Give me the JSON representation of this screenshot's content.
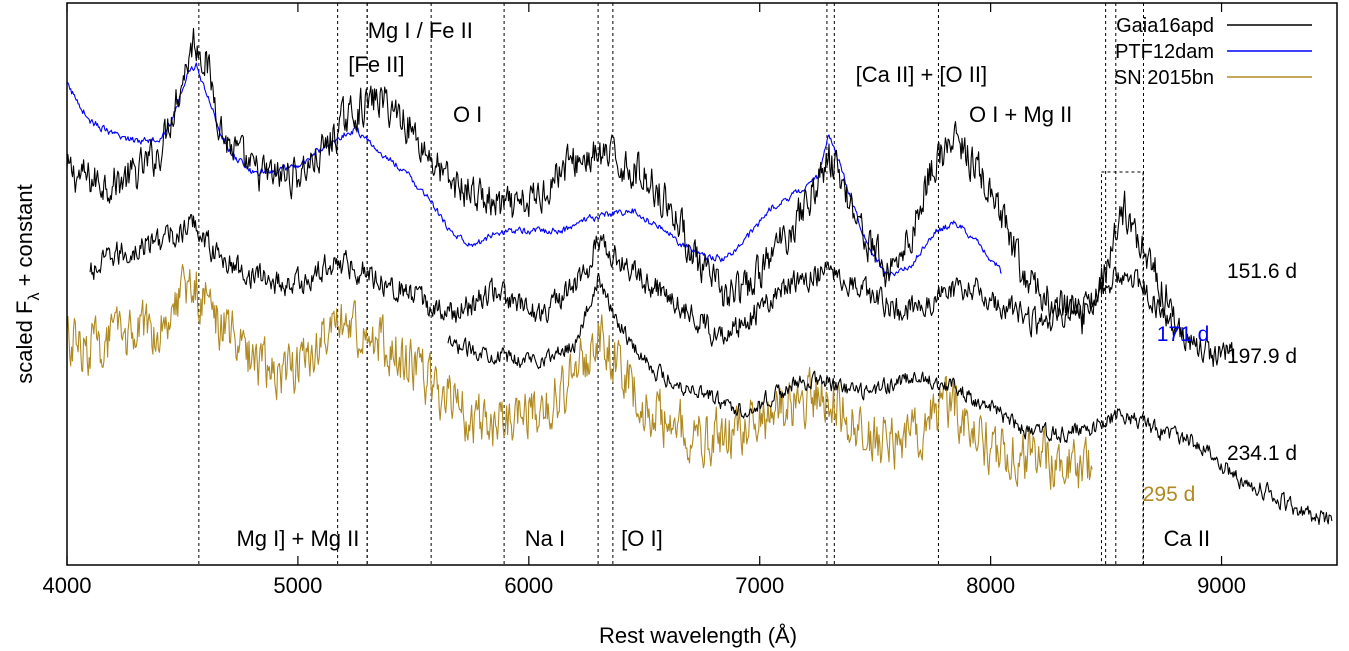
{
  "chart_data": {
    "type": "line",
    "title": "",
    "xlabel": "Rest wavelength (Å)",
    "ylabel": "scaled F",
    "ylabel_subscript": "λ",
    "ylabel_suffix": " + constant",
    "xlim": [
      4000,
      9500
    ],
    "ylim": [
      0,
      10
    ],
    "xticks": [
      "4000",
      "5000",
      "6000",
      "7000",
      "8000",
      "9000"
    ],
    "yticks_shown": false,
    "legend_position": "top-right",
    "colors": {
      "Gaia16apd": "#000000",
      "PTF12dam": "#0000ff",
      "SN 2015bn": "#b08a20"
    },
    "series": [
      {
        "name": "Gaia16apd",
        "epoch": "151.6 d",
        "color": "#000000",
        "points": [
          [
            4000,
            7.0
          ],
          [
            4100,
            6.85
          ],
          [
            4200,
            6.8
          ],
          [
            4300,
            6.95
          ],
          [
            4400,
            7.35
          ],
          [
            4480,
            8.4
          ],
          [
            4550,
            9.35
          ],
          [
            4600,
            9.0
          ],
          [
            4680,
            7.6
          ],
          [
            4800,
            7.0
          ],
          [
            4900,
            6.9
          ],
          [
            5000,
            6.95
          ],
          [
            5100,
            7.3
          ],
          [
            5200,
            7.9
          ],
          [
            5250,
            8.1
          ],
          [
            5350,
            8.3
          ],
          [
            5450,
            8.0
          ],
          [
            5550,
            7.4
          ],
          [
            5650,
            6.8
          ],
          [
            5750,
            6.65
          ],
          [
            5850,
            6.4
          ],
          [
            5950,
            6.3
          ],
          [
            6050,
            6.6
          ],
          [
            6150,
            7.1
          ],
          [
            6250,
            7.25
          ],
          [
            6350,
            7.25
          ],
          [
            6450,
            7.05
          ],
          [
            6550,
            6.75
          ],
          [
            6650,
            6.1
          ],
          [
            6750,
            5.2
          ],
          [
            6850,
            4.8
          ],
          [
            6950,
            4.9
          ],
          [
            7050,
            5.5
          ],
          [
            7150,
            6.1
          ],
          [
            7250,
            6.8
          ],
          [
            7300,
            7.25
          ],
          [
            7350,
            6.9
          ],
          [
            7450,
            5.9
          ],
          [
            7550,
            5.2
          ],
          [
            7650,
            5.8
          ],
          [
            7750,
            7.15
          ],
          [
            7850,
            7.55
          ],
          [
            7950,
            7.0
          ],
          [
            8050,
            6.1
          ],
          [
            8150,
            5.05
          ],
          [
            8300,
            4.55
          ],
          [
            8400,
            4.4
          ],
          [
            8500,
            5.3
          ],
          [
            8580,
            6.35
          ],
          [
            8650,
            5.7
          ],
          [
            8750,
            4.9
          ],
          [
            8800,
            4.45
          ]
        ]
      },
      {
        "name": "",
        "epoch": "197.9 d",
        "color": "#000000",
        "points": [
          [
            4100,
            5.15
          ],
          [
            4200,
            5.5
          ],
          [
            4300,
            5.6
          ],
          [
            4400,
            5.8
          ],
          [
            4500,
            5.9
          ],
          [
            4550,
            6.1
          ],
          [
            4650,
            5.5
          ],
          [
            4750,
            5.25
          ],
          [
            4850,
            5.1
          ],
          [
            4950,
            5.0
          ],
          [
            5050,
            5.05
          ],
          [
            5150,
            5.4
          ],
          [
            5250,
            5.3
          ],
          [
            5350,
            5.1
          ],
          [
            5450,
            4.9
          ],
          [
            5550,
            4.65
          ],
          [
            5650,
            4.45
          ],
          [
            5750,
            4.6
          ],
          [
            5850,
            4.9
          ],
          [
            5950,
            4.6
          ],
          [
            6050,
            4.5
          ],
          [
            6150,
            4.75
          ],
          [
            6250,
            5.2
          ],
          [
            6300,
            5.85
          ],
          [
            6400,
            5.4
          ],
          [
            6500,
            5.05
          ],
          [
            6600,
            4.85
          ],
          [
            6700,
            4.45
          ],
          [
            6800,
            4.15
          ],
          [
            6900,
            4.25
          ],
          [
            7000,
            4.55
          ],
          [
            7100,
            4.9
          ],
          [
            7200,
            5.1
          ],
          [
            7300,
            5.3
          ],
          [
            7400,
            5.05
          ],
          [
            7500,
            4.75
          ],
          [
            7600,
            4.55
          ],
          [
            7700,
            4.6
          ],
          [
            7800,
            4.85
          ],
          [
            7900,
            4.95
          ],
          [
            8000,
            4.75
          ],
          [
            8100,
            4.5
          ],
          [
            8200,
            4.3
          ],
          [
            8300,
            4.35
          ],
          [
            8450,
            4.75
          ],
          [
            8550,
            5.2
          ],
          [
            8650,
            5.0
          ],
          [
            8750,
            4.4
          ],
          [
            8850,
            4.0
          ],
          [
            8950,
            3.7
          ],
          [
            9050,
            3.85
          ]
        ]
      },
      {
        "name": "",
        "epoch": "234.1 d",
        "color": "#000000",
        "points": [
          [
            5650,
            3.9
          ],
          [
            5800,
            3.8
          ],
          [
            5950,
            3.65
          ],
          [
            6100,
            3.7
          ],
          [
            6200,
            3.95
          ],
          [
            6250,
            4.5
          ],
          [
            6300,
            5.1
          ],
          [
            6350,
            4.6
          ],
          [
            6450,
            3.9
          ],
          [
            6550,
            3.45
          ],
          [
            6650,
            3.2
          ],
          [
            6750,
            3.1
          ],
          [
            6850,
            2.85
          ],
          [
            6950,
            2.75
          ],
          [
            7050,
            3.0
          ],
          [
            7150,
            3.2
          ],
          [
            7250,
            3.3
          ],
          [
            7350,
            3.15
          ],
          [
            7450,
            3.05
          ],
          [
            7550,
            3.2
          ],
          [
            7650,
            3.3
          ],
          [
            7750,
            3.3
          ],
          [
            7850,
            3.15
          ],
          [
            7950,
            2.9
          ],
          [
            8050,
            2.65
          ],
          [
            8150,
            2.4
          ],
          [
            8300,
            2.3
          ],
          [
            8450,
            2.45
          ],
          [
            8550,
            2.7
          ],
          [
            8650,
            2.55
          ],
          [
            8750,
            2.35
          ],
          [
            8900,
            2.15
          ],
          [
            9000,
            1.8
          ],
          [
            9100,
            1.45
          ],
          [
            9200,
            1.3
          ],
          [
            9300,
            1.05
          ],
          [
            9400,
            0.85
          ],
          [
            9480,
            0.8
          ]
        ]
      },
      {
        "name": "PTF12dam",
        "epoch": "171 d",
        "color": "#0000ff",
        "points": [
          [
            4000,
            8.55
          ],
          [
            4100,
            7.9
          ],
          [
            4200,
            7.65
          ],
          [
            4300,
            7.55
          ],
          [
            4400,
            7.6
          ],
          [
            4450,
            7.85
          ],
          [
            4520,
            8.7
          ],
          [
            4560,
            8.9
          ],
          [
            4620,
            8.2
          ],
          [
            4700,
            7.35
          ],
          [
            4800,
            7.0
          ],
          [
            4900,
            7.0
          ],
          [
            5000,
            7.1
          ],
          [
            5100,
            7.4
          ],
          [
            5200,
            7.65
          ],
          [
            5250,
            7.75
          ],
          [
            5350,
            7.35
          ],
          [
            5450,
            7.05
          ],
          [
            5550,
            6.6
          ],
          [
            5650,
            6.0
          ],
          [
            5750,
            5.65
          ],
          [
            5850,
            5.9
          ],
          [
            5950,
            5.95
          ],
          [
            6050,
            5.95
          ],
          [
            6150,
            5.95
          ],
          [
            6250,
            6.15
          ],
          [
            6350,
            6.25
          ],
          [
            6450,
            6.3
          ],
          [
            6550,
            6.05
          ],
          [
            6650,
            5.75
          ],
          [
            6750,
            5.5
          ],
          [
            6850,
            5.45
          ],
          [
            6950,
            5.85
          ],
          [
            7050,
            6.35
          ],
          [
            7150,
            6.6
          ],
          [
            7250,
            6.9
          ],
          [
            7300,
            7.65
          ],
          [
            7350,
            7.1
          ],
          [
            7450,
            5.85
          ],
          [
            7550,
            5.15
          ],
          [
            7650,
            5.3
          ],
          [
            7750,
            5.9
          ],
          [
            7850,
            6.1
          ],
          [
            7950,
            5.7
          ],
          [
            8050,
            5.2
          ]
        ]
      },
      {
        "name": "SN 2015bn",
        "epoch": "295 d",
        "color": "#b08a20",
        "points": [
          [
            4000,
            4.0
          ],
          [
            4100,
            3.85
          ],
          [
            4200,
            4.0
          ],
          [
            4300,
            4.1
          ],
          [
            4400,
            4.3
          ],
          [
            4480,
            4.8
          ],
          [
            4550,
            5.0
          ],
          [
            4650,
            4.4
          ],
          [
            4750,
            3.85
          ],
          [
            4850,
            3.55
          ],
          [
            4950,
            3.45
          ],
          [
            5050,
            3.7
          ],
          [
            5150,
            4.15
          ],
          [
            5250,
            4.25
          ],
          [
            5350,
            4.05
          ],
          [
            5450,
            3.7
          ],
          [
            5550,
            3.3
          ],
          [
            5650,
            2.95
          ],
          [
            5750,
            2.6
          ],
          [
            5850,
            2.55
          ],
          [
            5950,
            2.6
          ],
          [
            6050,
            2.8
          ],
          [
            6150,
            3.1
          ],
          [
            6250,
            3.7
          ],
          [
            6300,
            4.05
          ],
          [
            6380,
            3.6
          ],
          [
            6500,
            2.85
          ],
          [
            6600,
            2.5
          ],
          [
            6700,
            2.35
          ],
          [
            6800,
            2.25
          ],
          [
            6900,
            2.3
          ],
          [
            7000,
            2.55
          ],
          [
            7100,
            2.8
          ],
          [
            7200,
            3.0
          ],
          [
            7300,
            2.95
          ],
          [
            7400,
            2.55
          ],
          [
            7500,
            2.25
          ],
          [
            7600,
            2.2
          ],
          [
            7700,
            2.45
          ],
          [
            7800,
            2.85
          ],
          [
            7900,
            2.5
          ],
          [
            8000,
            2.1
          ],
          [
            8100,
            1.95
          ],
          [
            8200,
            1.85
          ],
          [
            8300,
            1.8
          ],
          [
            8400,
            1.7
          ],
          [
            8440,
            1.75
          ]
        ]
      }
    ],
    "line_ids": [
      {
        "label": "Mg I] + Mg II",
        "wavelengths": [
          4571,
          5300
        ],
        "label_x": 5000,
        "position": "bottom"
      },
      {
        "label": "Mg I / Fe II",
        "wavelengths": [
          5172
        ],
        "label_x": 5530,
        "position": "top"
      },
      {
        "label": "[Fe II]",
        "wavelengths": [
          5300
        ],
        "label_x": 5340,
        "position": "top"
      },
      {
        "label": "O I",
        "wavelengths": [
          5577
        ],
        "label_x": 5735,
        "position": "top"
      },
      {
        "label": "Na I",
        "wavelengths": [
          5893
        ],
        "label_x": 6070,
        "position": "bottom"
      },
      {
        "label": "[O I]",
        "wavelengths": [
          6300,
          6364
        ],
        "label_x": 6490,
        "position": "bottom"
      },
      {
        "label": "[Ca II] + [O II]",
        "wavelengths": [
          7291,
          7323
        ],
        "label_x": 7700,
        "position": "top"
      },
      {
        "label": "O I + Mg II",
        "wavelengths": [
          7774
        ],
        "label_x": 8130,
        "position": "top"
      },
      {
        "label": "Ca II",
        "wavelengths": [
          8498,
          8542,
          8662
        ],
        "label_x": 8850,
        "position": "bottom"
      }
    ]
  }
}
